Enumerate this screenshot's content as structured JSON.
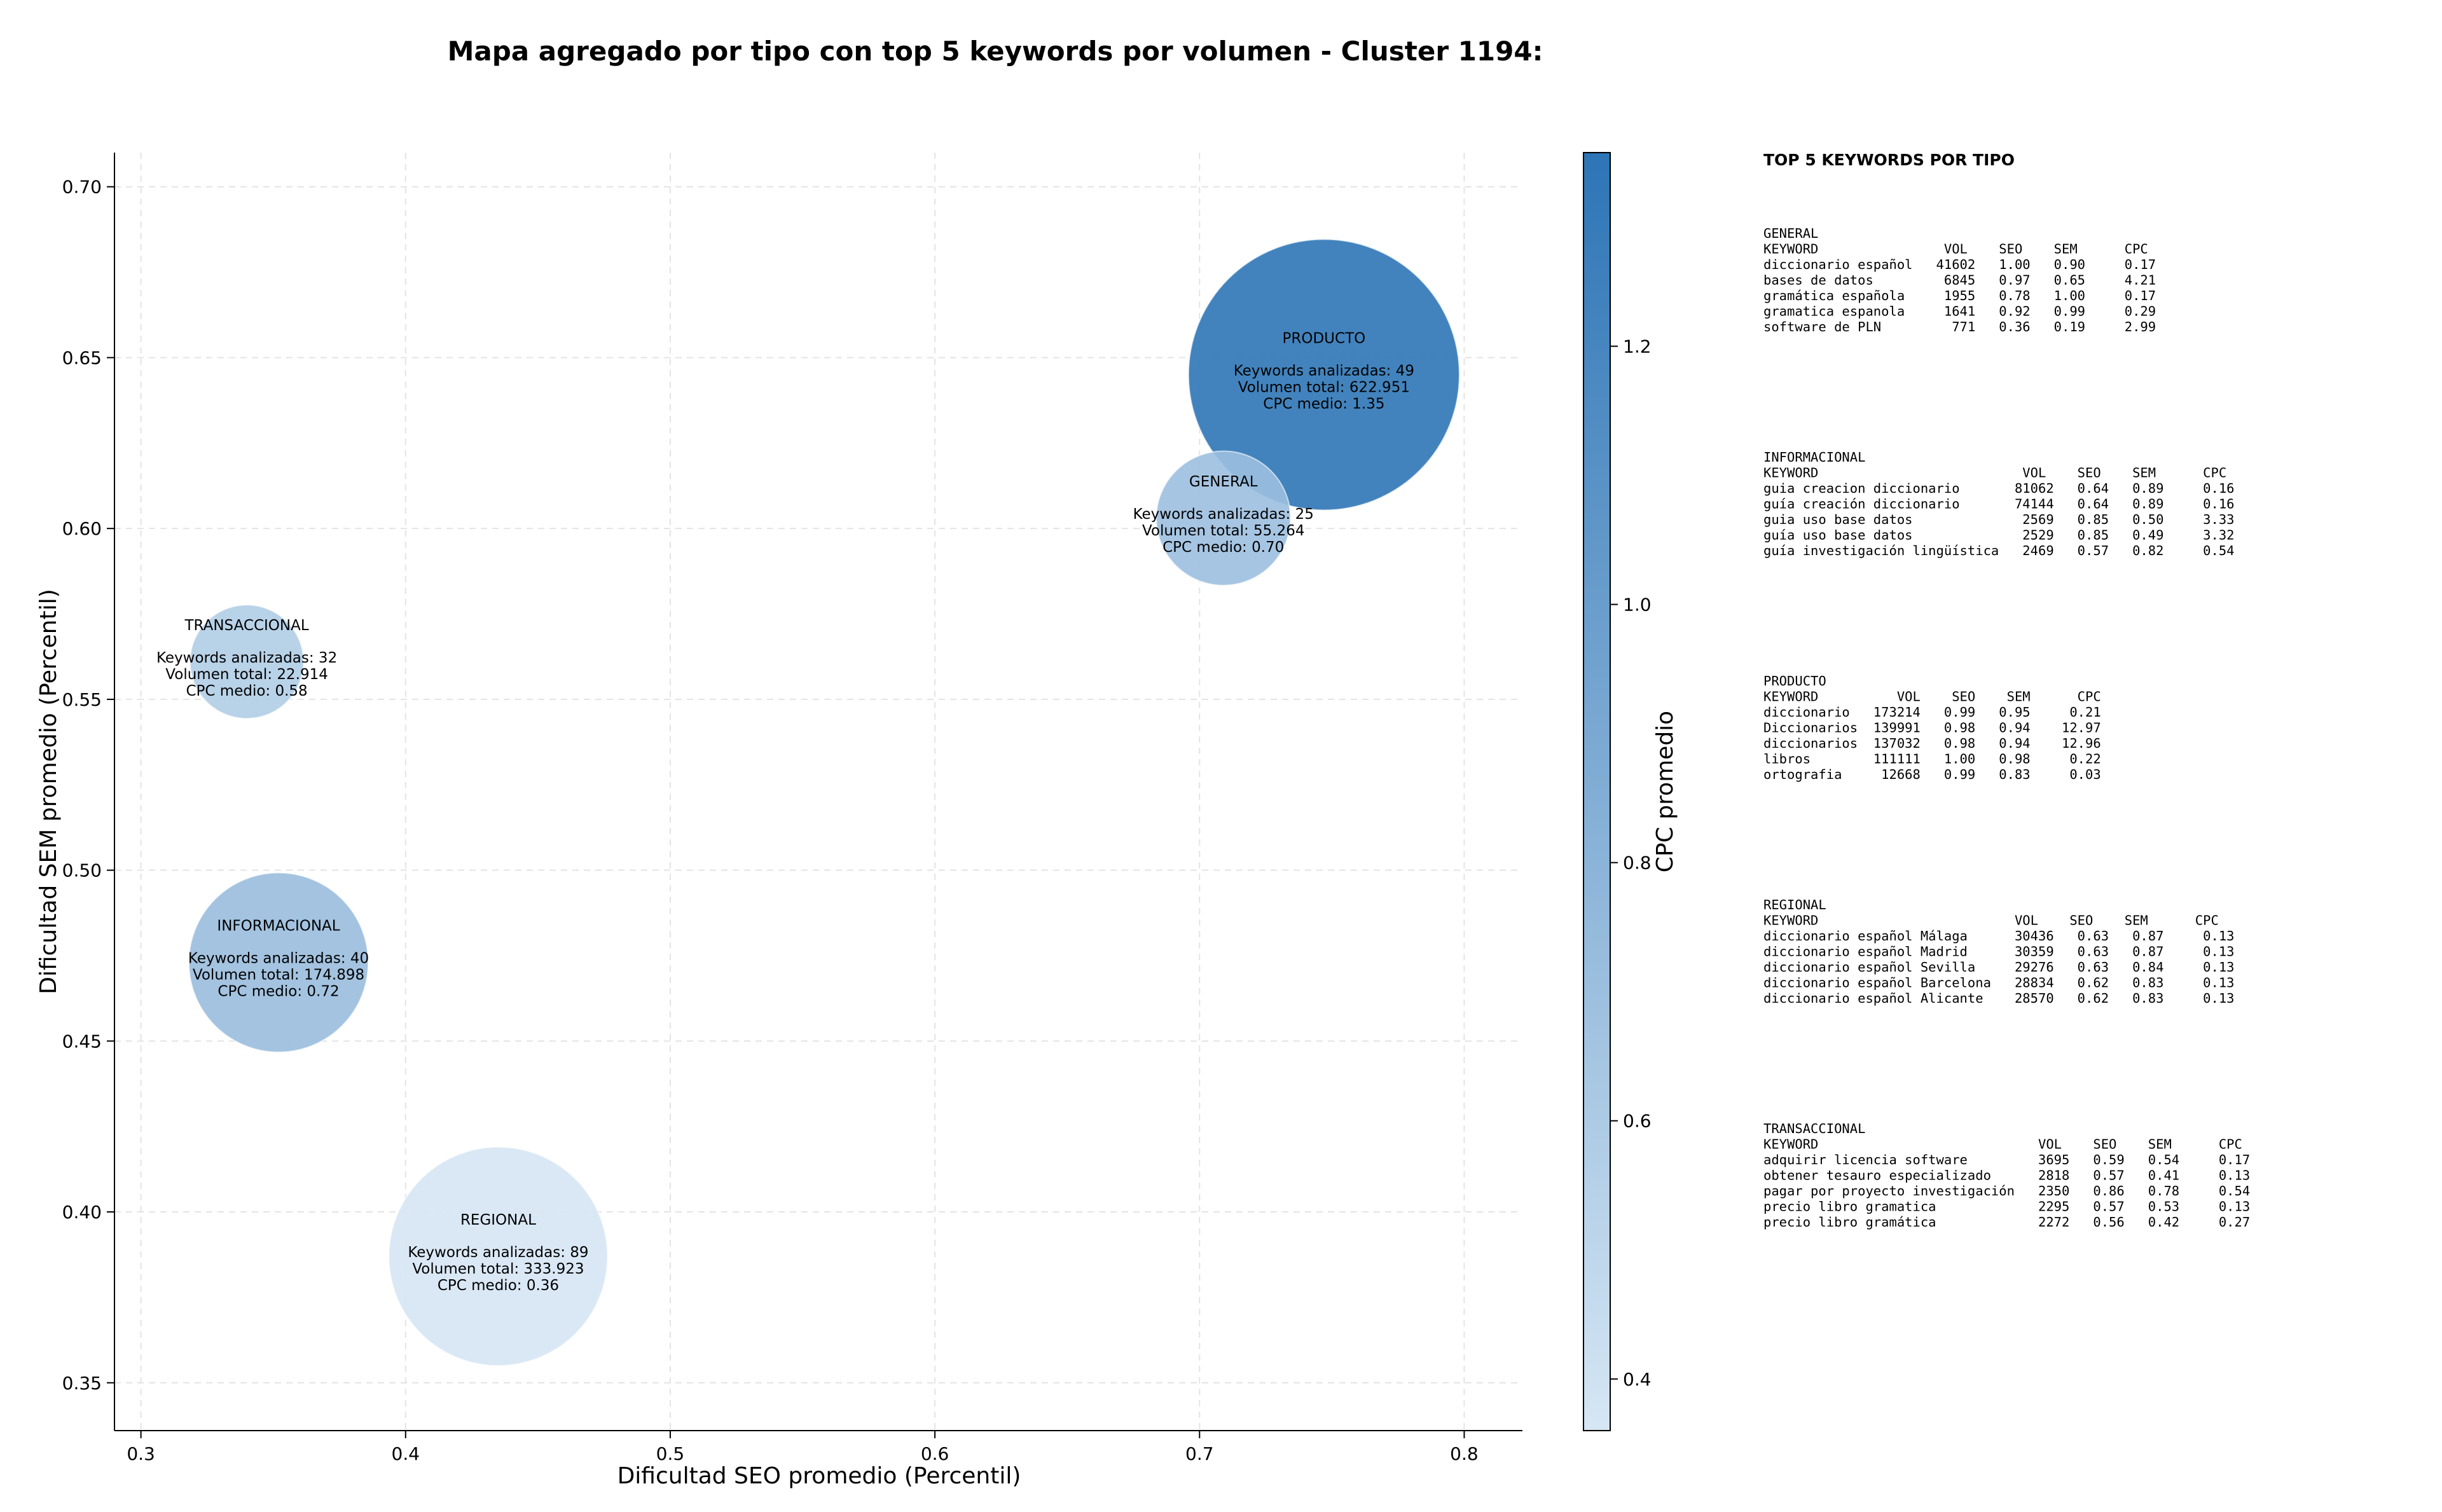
{
  "chart_data": {
    "type": "scatter",
    "title": "Mapa agregado por tipo con top 5 keywords por volumen - Cluster 1194:",
    "xlabel": "Dificultad SEO promedio (Percentil)",
    "ylabel": "Dificultad SEM promedio (Percentil)",
    "xlim": [
      0.29,
      0.822
    ],
    "ylim": [
      0.336,
      0.71
    ],
    "xticks": [
      "0.3",
      "0.4",
      "0.5",
      "0.6",
      "0.7",
      "0.8"
    ],
    "yticks": [
      "0.35",
      "0.40",
      "0.45",
      "0.50",
      "0.55",
      "0.60",
      "0.65",
      "0.70"
    ],
    "grid": true,
    "colorbar": {
      "label": "CPC promedio",
      "range": [
        0.36,
        1.35
      ],
      "ticks": [
        "0.4",
        "0.6",
        "0.8",
        "1.0",
        "1.2"
      ],
      "color_low": "#d6e6f4",
      "color_high": "#2d75b6"
    },
    "bubble_lines": {
      "keywords_prefix": "Keywords analizadas: ",
      "volume_prefix": "Volumen total: ",
      "cpc_prefix": "CPC medio: "
    },
    "points": [
      {
        "name": "PRODUCTO",
        "x": 0.747,
        "y": 0.645,
        "keywords": "49",
        "volume": 622951,
        "volume_text": "622.951",
        "cpc": 1.35,
        "cpc_text": "1.35"
      },
      {
        "name": "GENERAL",
        "x": 0.709,
        "y": 0.603,
        "keywords": "25",
        "volume": 55264,
        "volume_text": "55.264",
        "cpc": 0.7,
        "cpc_text": "0.70"
      },
      {
        "name": "TRANSACCIONAL",
        "x": 0.34,
        "y": 0.561,
        "keywords": "32",
        "volume": 22914,
        "volume_text": "22.914",
        "cpc": 0.58,
        "cpc_text": "0.58"
      },
      {
        "name": "INFORMACIONAL",
        "x": 0.352,
        "y": 0.473,
        "keywords": "40",
        "volume": 174898,
        "volume_text": "174.898",
        "cpc": 0.72,
        "cpc_text": "0.72"
      },
      {
        "name": "REGIONAL",
        "x": 0.435,
        "y": 0.387,
        "keywords": "89",
        "volume": 333923,
        "volume_text": "333.923",
        "cpc": 0.36,
        "cpc_text": "0.36"
      }
    ]
  },
  "side_panel": {
    "heading": "TOP 5 KEYWORDS POR TIPO",
    "blocks": [
      {
        "lines": [
          "GENERAL",
          "KEYWORD                VOL    SEO    SEM      CPC",
          "diccionario español   41602   1.00   0.90     0.17",
          "bases de datos         6845   0.97   0.65     4.21",
          "gramática española     1955   0.78   1.00     0.17",
          "gramatica espanola     1641   0.92   0.99     0.29",
          "software de PLN         771   0.36   0.19     2.99"
        ]
      },
      {
        "lines": [
          "INFORMACIONAL",
          "KEYWORD                          VOL    SEO    SEM      CPC",
          "guia creacion diccionario       81062   0.64   0.89     0.16",
          "guía creación diccionario       74144   0.64   0.89     0.16",
          "guia uso base datos              2569   0.85   0.50     3.33",
          "guía uso base datos              2529   0.85   0.49     3.32",
          "guía investigación lingüística   2469   0.57   0.82     0.54"
        ]
      },
      {
        "lines": [
          "PRODUCTO",
          "KEYWORD          VOL    SEO    SEM      CPC",
          "diccionario   173214   0.99   0.95     0.21",
          "Diccionarios  139991   0.98   0.94    12.97",
          "diccionarios  137032   0.98   0.94    12.96",
          "libros        111111   1.00   0.98     0.22",
          "ortografia     12668   0.99   0.83     0.03"
        ]
      },
      {
        "lines": [
          "REGIONAL",
          "KEYWORD                         VOL    SEO    SEM      CPC",
          "diccionario español Málaga      30436   0.63   0.87     0.13",
          "diccionario español Madrid      30359   0.63   0.87     0.13",
          "diccionario español Sevilla     29276   0.63   0.84     0.13",
          "diccionario español Barcelona   28834   0.62   0.83     0.13",
          "diccionario español Alicante    28570   0.62   0.83     0.13"
        ]
      },
      {
        "lines": [
          "TRANSACCIONAL",
          "KEYWORD                            VOL    SEO    SEM      CPC",
          "adquirir licencia software         3695   0.59   0.54     0.17",
          "obtener tesauro especializado      2818   0.57   0.41     0.13",
          "pagar por proyecto investigación   2350   0.86   0.78     0.54",
          "precio libro gramatica             2295   0.57   0.53     0.13",
          "precio libro gramática             2272   0.56   0.42     0.27"
        ]
      }
    ]
  }
}
